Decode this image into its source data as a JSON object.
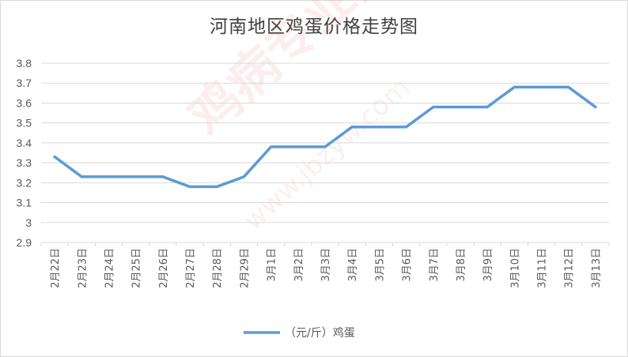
{
  "chart_data": {
    "type": "line",
    "title": "河南地区鸡蛋价格走势图",
    "categories": [
      "2月22日",
      "2月23日",
      "2月24日",
      "2月25日",
      "2月26日",
      "2月27日",
      "2月28日",
      "2月29日",
      "3月1日",
      "3月2日",
      "3月3日",
      "3月4日",
      "3月5日",
      "3月6日",
      "3月7日",
      "3月8日",
      "3月9日",
      "3月10日",
      "3月11日",
      "3月12日",
      "3月13日"
    ],
    "series": [
      {
        "name": "（元/斤）鸡蛋",
        "values": [
          3.33,
          3.23,
          3.23,
          3.23,
          3.23,
          3.18,
          3.18,
          3.23,
          3.38,
          3.38,
          3.38,
          3.48,
          3.48,
          3.48,
          3.58,
          3.58,
          3.58,
          3.68,
          3.68,
          3.68,
          3.58
        ]
      }
    ],
    "ylim": [
      2.9,
      3.8
    ],
    "yticks": [
      "2.9",
      "3",
      "3.1",
      "3.2",
      "3.3",
      "3.4",
      "3.5",
      "3.6",
      "3.7",
      "3.8"
    ],
    "grid": true,
    "legend": "bottom",
    "line_color": "#5b9bd5",
    "grid_color": "#d9d9d9"
  },
  "watermark": {
    "main": "鸡病专业网",
    "url": "www.jbzyw.com",
    "tagline": "养 业 在 线"
  }
}
